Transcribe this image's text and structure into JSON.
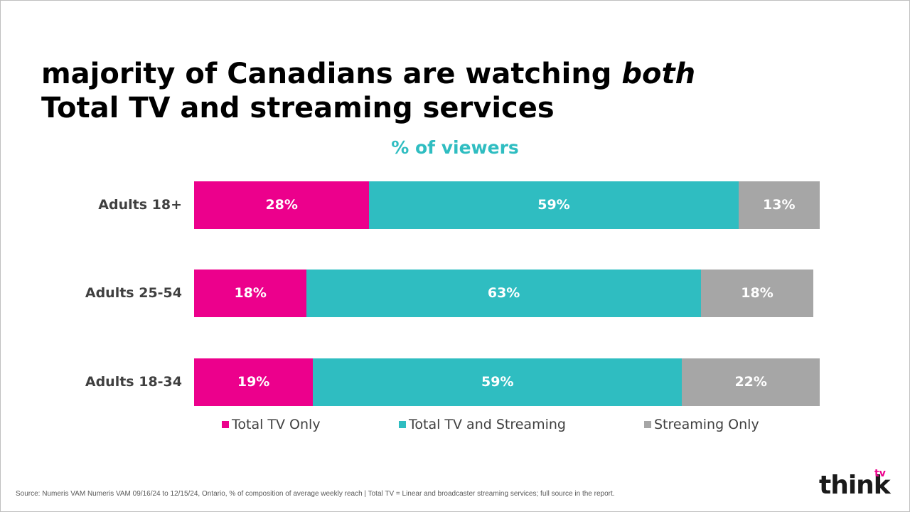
{
  "title": {
    "line1_prefix": "majority of Canadians are watching ",
    "line1_emphasis": "both",
    "line2": "Total TV and streaming services"
  },
  "chart_data": {
    "type": "bar",
    "orientation": "horizontal",
    "stacked": true,
    "normalized_percent": true,
    "title": "% of viewers",
    "categories": [
      "Adults 18+",
      "Adults 25-54",
      "Adults 18-34"
    ],
    "series": [
      {
        "name": "Total TV Only",
        "color": "#ec008c",
        "values": [
          28,
          18,
          19
        ],
        "labels": [
          "28%",
          "18%",
          "19%"
        ]
      },
      {
        "name": "Total TV and Streaming",
        "color": "#2fbdc1",
        "values": [
          59,
          63,
          59
        ],
        "labels": [
          "59%",
          "63%",
          "59%"
        ]
      },
      {
        "name": "Streaming Only",
        "color": "#a6a6a6",
        "values": [
          13,
          18,
          22
        ],
        "labels": [
          "13%",
          "18%",
          "22%"
        ]
      }
    ],
    "xlim": [
      0,
      100
    ],
    "grid": false,
    "legend_position": "bottom"
  },
  "source": "Source:  Numeris VAM Numeris VAM 09/16/24 to 12/15/24, Ontario, % of composition of average weekly reach  |  Total TV = Linear and broadcaster streaming services; full source in the report.",
  "logo": {
    "main": "think",
    "superscript": "tv"
  }
}
